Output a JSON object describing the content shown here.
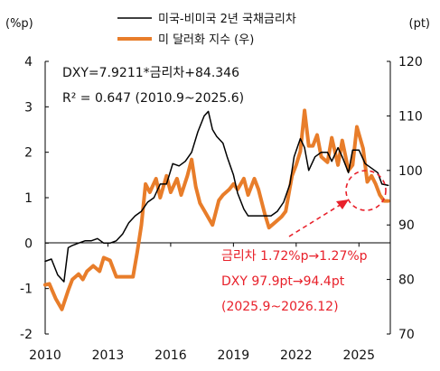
{
  "chart_data": {
    "type": "line",
    "title": "",
    "left_axis": {
      "label": "(%p)",
      "ylim": [
        -2,
        4
      ],
      "ticks": [
        "4",
        "3",
        "2",
        "1",
        "0",
        "-1",
        "-2"
      ]
    },
    "right_axis": {
      "label": "(pt)",
      "ylim": [
        70,
        120
      ],
      "ticks": [
        "120",
        "110",
        "100",
        "90",
        "80",
        "70"
      ]
    },
    "x_axis": {
      "xlim": [
        2010,
        2026.5
      ],
      "ticks": [
        "2010",
        "2013",
        "2016",
        "2019",
        "2022",
        "2025"
      ]
    },
    "legend": {
      "position": "top",
      "entries": [
        "미국-비미국 2년 국채금리차",
        "미 달러화 지수 (우)"
      ]
    },
    "colors": {
      "spread": "#000000",
      "dxy": "#e87d2a",
      "annotation": "#e8202a"
    },
    "annotations": {
      "regression": [
        "DXY=7.9211*금리차+84.346",
        "R² = 0.647 (2010.9~2025.6)"
      ],
      "forecast": [
        "금리차 1.72%p→1.27%p",
        "DXY 97.9pt→94.4pt",
        "(2025.9~2026.12)"
      ]
    },
    "series": [
      {
        "name": "미국-비미국 2년 국채금리차",
        "axis": "left",
        "x": [
          2010.0,
          2010.3,
          2010.6,
          2010.9,
          2011.1,
          2011.3,
          2011.6,
          2011.9,
          2012.2,
          2012.5,
          2012.8,
          2013.1,
          2013.4,
          2013.7,
          2014.0,
          2014.3,
          2014.6,
          2014.9,
          2015.2,
          2015.5,
          2015.8,
          2016.1,
          2016.4,
          2016.7,
          2017.0,
          2017.3,
          2017.6,
          2017.8,
          2018.0,
          2018.2,
          2018.5,
          2018.7,
          2019.0,
          2019.2,
          2019.5,
          2019.7,
          2020.0,
          2020.2,
          2020.5,
          2020.8,
          2021.1,
          2021.4,
          2021.7,
          2021.9,
          2022.2,
          2022.4,
          2022.6,
          2022.9,
          2023.2,
          2023.5,
          2023.7,
          2024.0,
          2024.2,
          2024.5,
          2024.7,
          2025.0,
          2025.3,
          2025.6,
          2025.9,
          2026.1,
          2026.4
        ],
        "values": [
          -0.4,
          -0.35,
          -0.7,
          -0.85,
          -0.1,
          -0.05,
          0.0,
          0.05,
          0.05,
          0.1,
          0.0,
          0.0,
          0.05,
          0.2,
          0.45,
          0.6,
          0.7,
          0.9,
          1.0,
          1.3,
          1.3,
          1.75,
          1.7,
          1.8,
          2.0,
          2.45,
          2.8,
          2.9,
          2.5,
          2.35,
          2.2,
          1.9,
          1.5,
          1.1,
          0.75,
          0.6,
          0.6,
          0.6,
          0.6,
          0.6,
          0.7,
          0.9,
          1.3,
          1.9,
          2.3,
          2.1,
          1.6,
          1.9,
          2.0,
          2.0,
          1.8,
          2.1,
          1.9,
          1.55,
          2.05,
          2.05,
          1.75,
          1.65,
          1.55,
          1.3,
          1.27
        ]
      },
      {
        "name": "미 달러화 지수 (우)",
        "axis": "right",
        "x": [
          2010.0,
          2010.2,
          2010.5,
          2010.8,
          2011.1,
          2011.3,
          2011.6,
          2011.8,
          2012.0,
          2012.3,
          2012.6,
          2012.8,
          2013.1,
          2013.4,
          2013.7,
          2013.9,
          2014.2,
          2014.4,
          2014.6,
          2014.8,
          2015.0,
          2015.3,
          2015.5,
          2015.8,
          2016.0,
          2016.3,
          2016.5,
          2016.8,
          2017.0,
          2017.2,
          2017.4,
          2017.7,
          2018.0,
          2018.3,
          2018.5,
          2018.8,
          2019.0,
          2019.2,
          2019.5,
          2019.7,
          2020.0,
          2020.2,
          2020.5,
          2020.7,
          2021.0,
          2021.3,
          2021.5,
          2021.8,
          2022.0,
          2022.2,
          2022.4,
          2022.6,
          2022.8,
          2023.0,
          2023.2,
          2023.5,
          2023.7,
          2024.0,
          2024.2,
          2024.5,
          2024.7,
          2024.9,
          2025.2,
          2025.4,
          2025.6,
          2025.8,
          2026.0,
          2026.2,
          2026.4
        ],
        "values": [
          79,
          79.2,
          76.5,
          74.5,
          78,
          80,
          81,
          80,
          81.5,
          82.5,
          81.5,
          84,
          83.5,
          80.5,
          80.5,
          80.5,
          80.5,
          85,
          90,
          97.5,
          96,
          98.5,
          95,
          99,
          96,
          98.5,
          95.5,
          99,
          102,
          97,
          94,
          92,
          90,
          94.5,
          95.5,
          96.5,
          97.5,
          96.5,
          98.5,
          95.5,
          98.5,
          96.5,
          92,
          89.5,
          90.5,
          91.5,
          92.5,
          99,
          101,
          103.5,
          111,
          104.5,
          104.5,
          106.5,
          102.5,
          101.5,
          106,
          101,
          105.5,
          100,
          101,
          108,
          104,
          97.9,
          99,
          97.5,
          95.5,
          94.4,
          94.4
        ]
      }
    ]
  }
}
